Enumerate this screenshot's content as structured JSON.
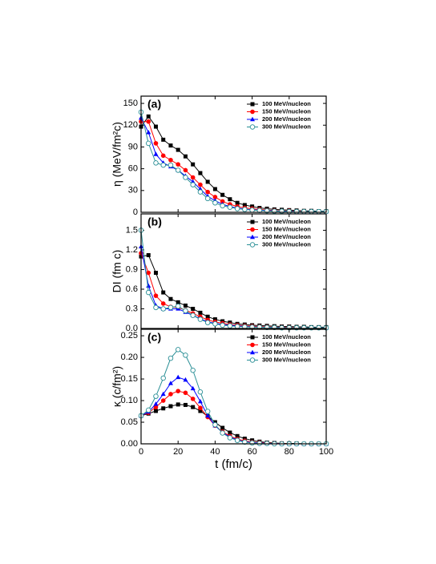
{
  "chart_data": [
    {
      "type": "line",
      "panel_label": "(a)",
      "ylabel": "η (MeV/fm²c)",
      "x": [
        0,
        4,
        8,
        12,
        16,
        20,
        24,
        28,
        32,
        36,
        40,
        44,
        48,
        52,
        56,
        60,
        64,
        68,
        72,
        76,
        80,
        84,
        88,
        92,
        96,
        100
      ],
      "xlim": [
        0,
        100
      ],
      "xticks": [
        0,
        20,
        40,
        60,
        80,
        100
      ],
      "ylim": [
        0,
        160
      ],
      "yticks": [
        0,
        30,
        60,
        90,
        120,
        150
      ],
      "series": [
        {
          "name": "100 MeV/nucleon",
          "color": "#000000",
          "marker": "square",
          "values": [
            118,
            132,
            118,
            100,
            92,
            86,
            77,
            66,
            54,
            42,
            32,
            24,
            18,
            13,
            10,
            8,
            6,
            5,
            4,
            3.5,
            3,
            2.5,
            2,
            2,
            1.5,
            1.5
          ]
        },
        {
          "name": "150 MeV/nucleon",
          "color": "#ff0000",
          "marker": "circle",
          "values": [
            125,
            125,
            95,
            78,
            72,
            66,
            58,
            48,
            38,
            28,
            21,
            15,
            11,
            8,
            6,
            5,
            4,
            3,
            2.5,
            2,
            2,
            1.5,
            1.5,
            1,
            1,
            1
          ]
        },
        {
          "name": "200 MeV/nucleon",
          "color": "#0000ff",
          "marker": "triangle",
          "values": [
            130,
            110,
            80,
            68,
            63,
            58,
            50,
            42,
            32,
            22,
            16,
            11,
            8,
            6,
            4.5,
            3.5,
            3,
            2.5,
            2,
            1.5,
            1.5,
            1,
            1,
            1,
            1,
            1
          ]
        },
        {
          "name": "300 MeV/nucleon",
          "color": "#2a8f96",
          "marker": "open-circle",
          "values": [
            138,
            95,
            68,
            65,
            65,
            58,
            48,
            38,
            28,
            19,
            13,
            9,
            7,
            5,
            4,
            3,
            2.5,
            2,
            1.5,
            1.5,
            1,
            1,
            1,
            1,
            1,
            1
          ]
        }
      ]
    },
    {
      "type": "line",
      "panel_label": "(b)",
      "ylabel": "DI (fm c)",
      "x": [
        0,
        4,
        8,
        12,
        16,
        20,
        24,
        28,
        32,
        36,
        40,
        44,
        48,
        52,
        56,
        60,
        64,
        68,
        72,
        76,
        80,
        84,
        88,
        92,
        96,
        100
      ],
      "xlim": [
        0,
        100
      ],
      "xticks": [
        0,
        20,
        40,
        60,
        80,
        100
      ],
      "ylim": [
        0,
        1.75
      ],
      "yticks": [
        0.0,
        0.3,
        0.6,
        0.9,
        1.2,
        1.5
      ],
      "series": [
        {
          "name": "100 MeV/nucleon",
          "color": "#000000",
          "marker": "square",
          "values": [
            1.1,
            1.12,
            0.85,
            0.55,
            0.45,
            0.4,
            0.35,
            0.3,
            0.24,
            0.18,
            0.14,
            0.11,
            0.09,
            0.07,
            0.06,
            0.05,
            0.045,
            0.04,
            0.035,
            0.03,
            0.03,
            0.025,
            0.025,
            0.02,
            0.02,
            0.02
          ]
        },
        {
          "name": "150 MeV/nucleon",
          "color": "#ff0000",
          "marker": "circle",
          "values": [
            1.15,
            0.85,
            0.5,
            0.38,
            0.33,
            0.32,
            0.28,
            0.23,
            0.18,
            0.13,
            0.1,
            0.08,
            0.06,
            0.05,
            0.04,
            0.035,
            0.03,
            0.025,
            0.02,
            0.02,
            0.02,
            0.015,
            0.015,
            0.01,
            0.01,
            0.01
          ]
        },
        {
          "name": "200 MeV/nucleon",
          "color": "#0000ff",
          "marker": "triangle",
          "values": [
            1.25,
            0.65,
            0.35,
            0.3,
            0.3,
            0.3,
            0.25,
            0.2,
            0.15,
            0.1,
            0.08,
            0.06,
            0.05,
            0.04,
            0.03,
            0.025,
            0.02,
            0.02,
            0.015,
            0.015,
            0.01,
            0.01,
            0.01,
            0.01,
            0.01,
            0.01
          ]
        },
        {
          "name": "300 MeV/nucleon",
          "color": "#2a8f96",
          "marker": "open-circle",
          "values": [
            1.5,
            0.55,
            0.32,
            0.3,
            0.32,
            0.34,
            0.27,
            0.2,
            0.14,
            0.09,
            0.07,
            0.05,
            0.04,
            0.03,
            0.025,
            0.02,
            0.02,
            0.015,
            0.015,
            0.01,
            0.01,
            0.01,
            0.01,
            0.01,
            0.01,
            0.01
          ]
        }
      ]
    },
    {
      "type": "line",
      "panel_label": "(c)",
      "ylabel": "κ (c/fm²)",
      "xlabel": "t (fm/c)",
      "x": [
        0,
        4,
        8,
        12,
        16,
        20,
        24,
        28,
        32,
        36,
        40,
        44,
        48,
        52,
        56,
        60,
        64,
        68,
        72,
        76,
        80,
        84,
        88,
        92,
        96,
        100
      ],
      "xlim": [
        0,
        100
      ],
      "xticks": [
        0,
        20,
        40,
        60,
        80,
        100
      ],
      "ylim": [
        0,
        0.265
      ],
      "yticks": [
        0.0,
        0.05,
        0.1,
        0.15,
        0.2,
        0.25
      ],
      "series": [
        {
          "name": "100 MeV/nucleon",
          "color": "#000000",
          "marker": "square",
          "values": [
            0.065,
            0.07,
            0.076,
            0.082,
            0.087,
            0.091,
            0.09,
            0.085,
            0.076,
            0.064,
            0.05,
            0.037,
            0.026,
            0.018,
            0.012,
            0.008,
            0.005,
            0.003,
            0.002,
            0.001,
            0.001,
            0.001,
            0,
            0,
            0,
            0
          ]
        },
        {
          "name": "150 MeV/nucleon",
          "color": "#ff0000",
          "marker": "circle",
          "values": [
            0.065,
            0.072,
            0.085,
            0.1,
            0.115,
            0.122,
            0.118,
            0.104,
            0.083,
            0.062,
            0.042,
            0.028,
            0.018,
            0.011,
            0.007,
            0.004,
            0.003,
            0.002,
            0.001,
            0.001,
            0,
            0,
            0,
            0,
            0,
            0
          ]
        },
        {
          "name": "200 MeV/nucleon",
          "color": "#0000ff",
          "marker": "triangle",
          "values": [
            0.065,
            0.074,
            0.092,
            0.115,
            0.14,
            0.154,
            0.148,
            0.128,
            0.098,
            0.065,
            0.042,
            0.026,
            0.016,
            0.009,
            0.005,
            0.003,
            0.002,
            0.001,
            0.001,
            0,
            0,
            0,
            0,
            0,
            0,
            0
          ]
        },
        {
          "name": "300 MeV/nucleon",
          "color": "#2a8f96",
          "marker": "open-circle",
          "values": [
            0.065,
            0.078,
            0.11,
            0.152,
            0.198,
            0.218,
            0.205,
            0.17,
            0.12,
            0.075,
            0.044,
            0.025,
            0.014,
            0.008,
            0.004,
            0.002,
            0.001,
            0.001,
            0,
            0,
            0,
            0,
            0,
            0,
            0,
            0
          ]
        }
      ]
    }
  ]
}
